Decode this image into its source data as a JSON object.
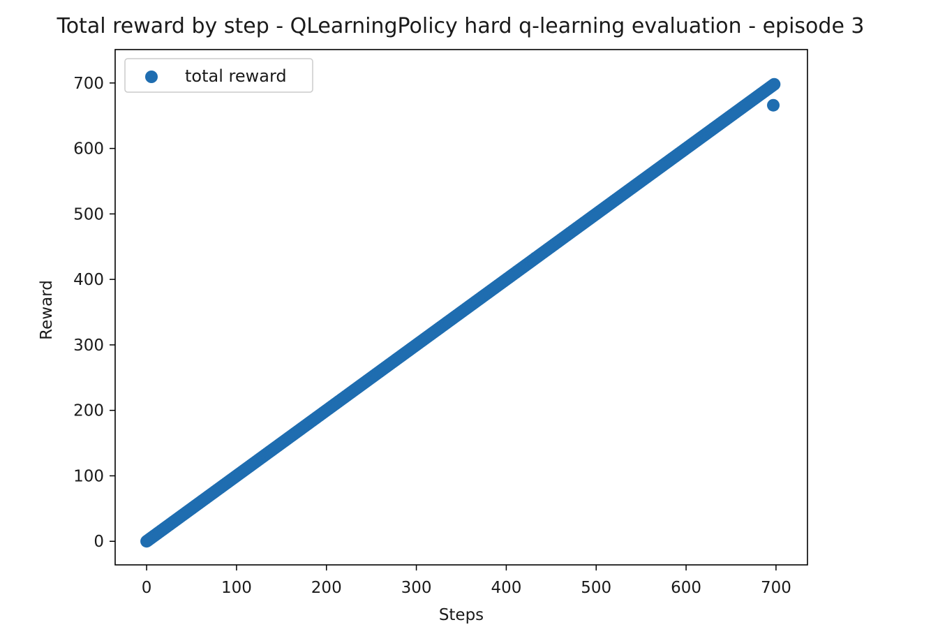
{
  "chart_data": {
    "type": "scatter",
    "title": "Total reward by step - QLearningPolicy hard q-learning evaluation - episode 3",
    "xlabel": "Steps",
    "ylabel": "Reward",
    "xlim": [
      -35,
      735
    ],
    "ylim": [
      -36,
      751
    ],
    "xticks": [
      0,
      100,
      200,
      300,
      400,
      500,
      600,
      700
    ],
    "yticks": [
      0,
      100,
      200,
      300,
      400,
      500,
      600,
      700
    ],
    "grid": false,
    "legend_position": "top-left",
    "series": [
      {
        "name": "total reward",
        "color": "#1f6db0",
        "marker": "circle",
        "rule": "y equals x for every step from 0 to 698, then a final step 697 at 666",
        "x_start": 0,
        "x_end": 698,
        "step": 1,
        "extra_points": [
          [
            697,
            666
          ]
        ]
      }
    ]
  }
}
